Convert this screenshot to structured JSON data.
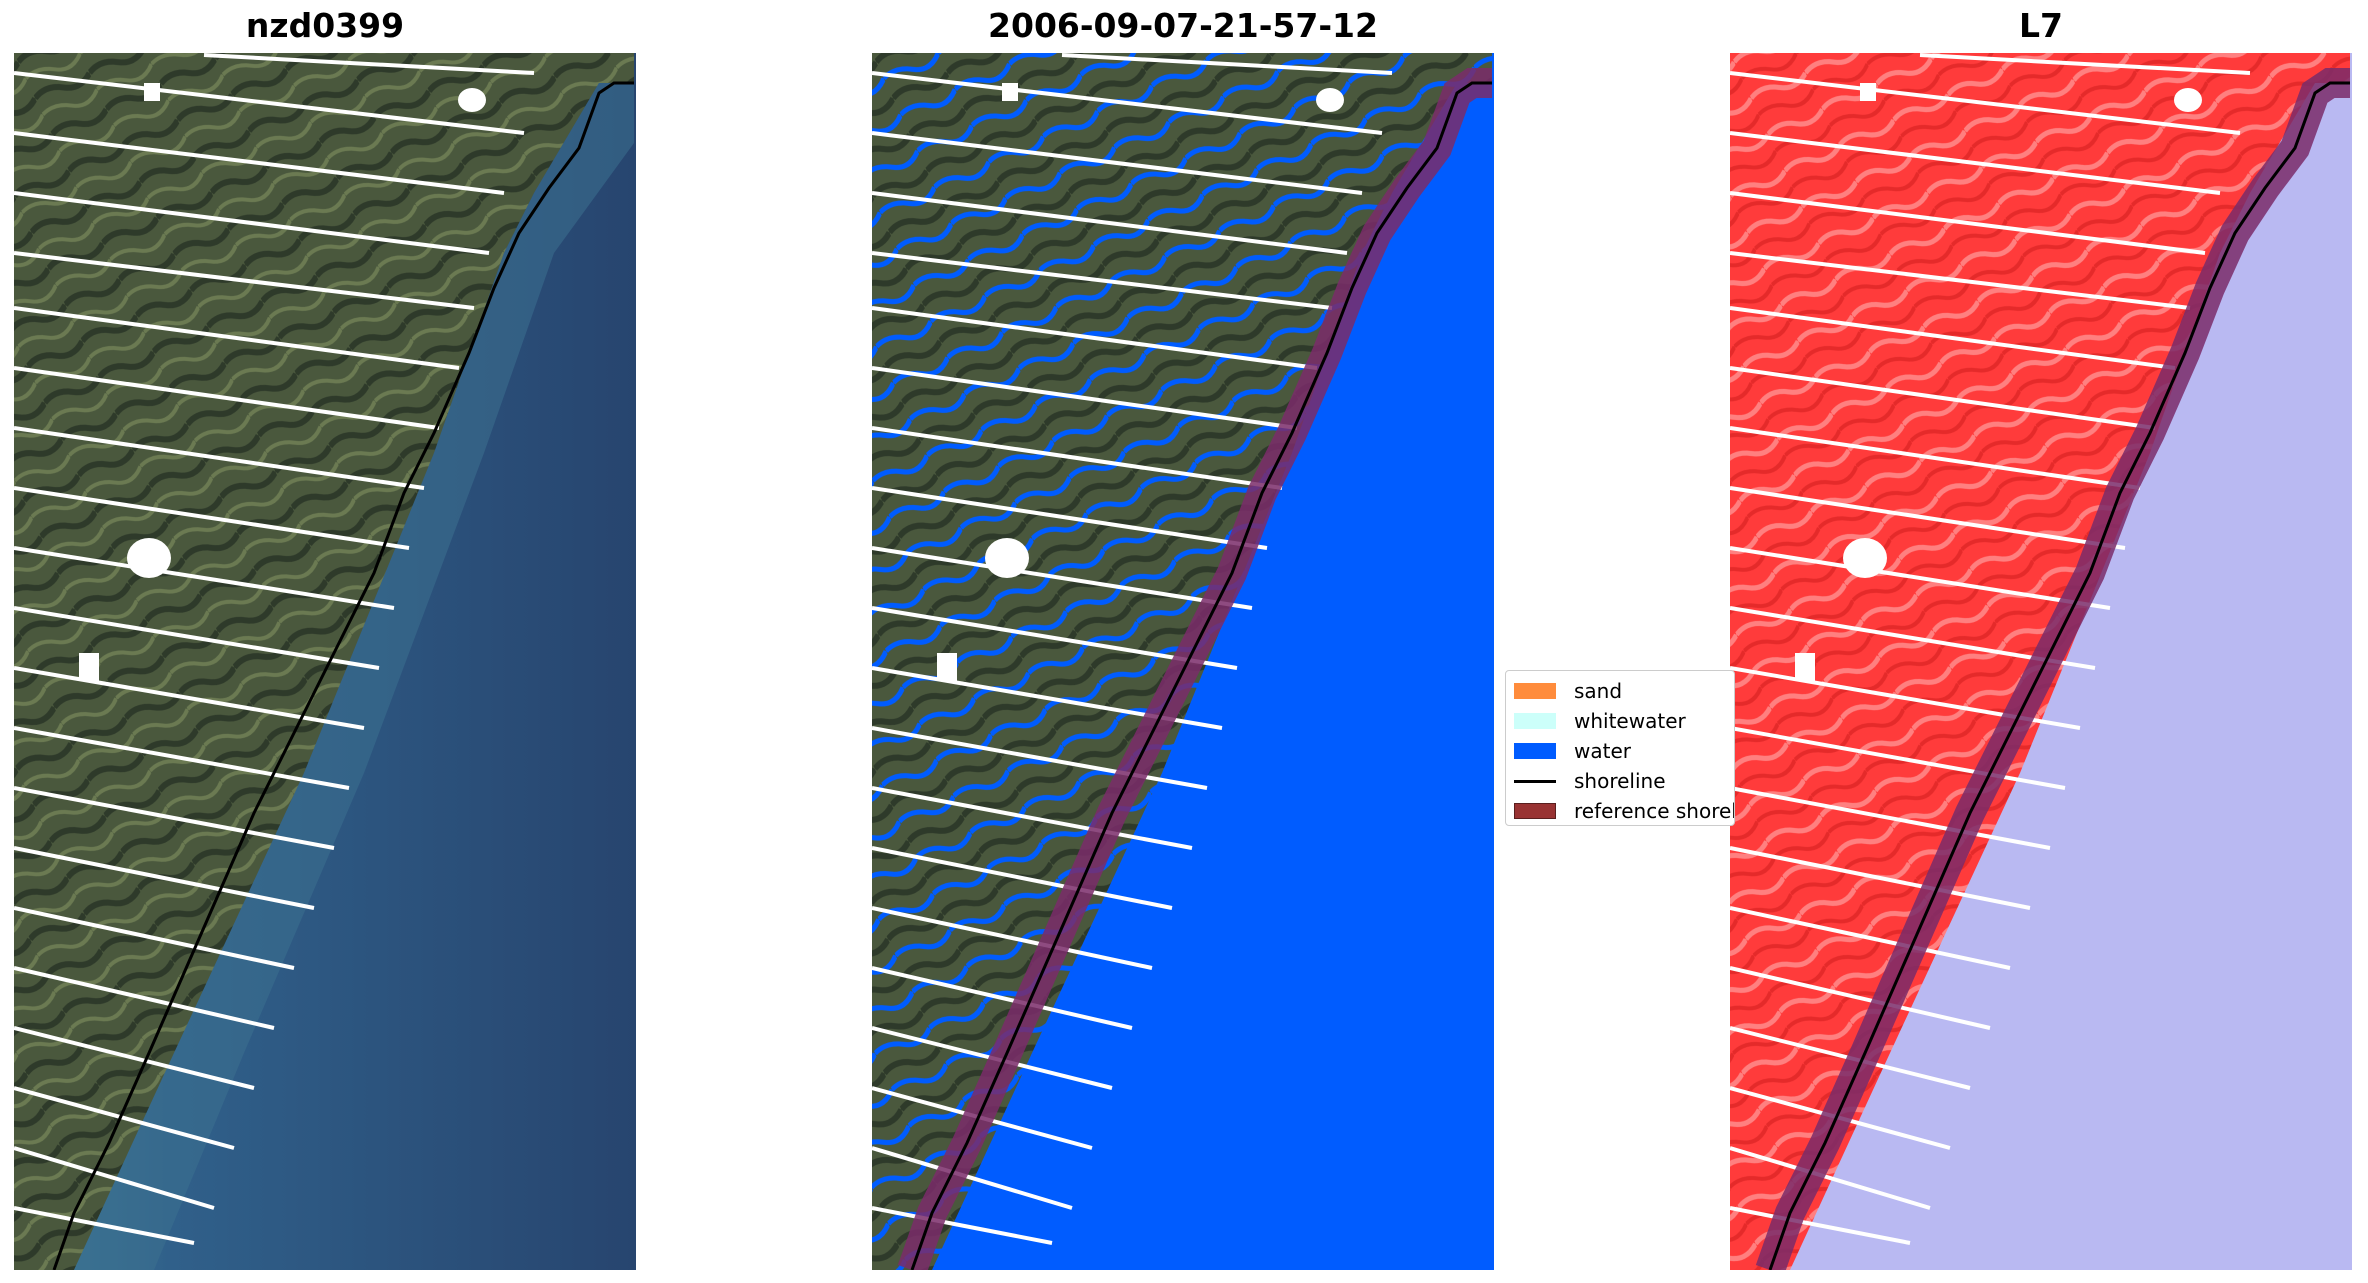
{
  "panels": [
    {
      "title": "nzd0399"
    },
    {
      "title": "2006-09-07-21-57-12"
    },
    {
      "title": "L7"
    }
  ],
  "legend": {
    "items": [
      {
        "label": "sand",
        "color": "#ff8c3c"
      },
      {
        "label": "whitewater",
        "color": "#ccfffa"
      },
      {
        "label": "water",
        "color": "#005cff"
      },
      {
        "label": "shoreline",
        "color": "#000000"
      },
      {
        "label": "reference shoreline",
        "color": "#993333"
      }
    ]
  },
  "colors": {
    "land_rgb": "#4b5a3e",
    "ocean_rgb": "#2a4a78",
    "nearshore_rgb": "#3f7c96",
    "water_class": "#005cff",
    "land_index": "#ff3b3b",
    "ocean_index": "#b9b9f2",
    "buffer": "#7a2b6a"
  }
}
